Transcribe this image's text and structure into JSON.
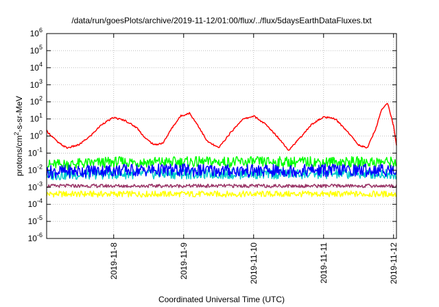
{
  "chart_data": {
    "type": "line",
    "title": "/data/run/goesPlots/archive/2019-11-12/01:00/flux/../flux/5daysEarthDataFluxes.txt",
    "xlabel": "Coordinated Universal Time (UTC)",
    "ylabel_parts": {
      "base": "protons/cm",
      "sup": "2",
      "rest": "-s-sr-MeV"
    },
    "yscale": "log",
    "ylim": [
      1e-06,
      1000000.0
    ],
    "xlim": [
      "2019-11-07 01:00",
      "2019-11-12 01:00"
    ],
    "grid": true,
    "x_ticks": [
      {
        "date": "2019-11-08",
        "label": "2019-11-8"
      },
      {
        "date": "2019-11-09",
        "label": "2019-11-9"
      },
      {
        "date": "2019-11-10",
        "label": "2019-11-10"
      },
      {
        "date": "2019-11-11",
        "label": "2019-11-11"
      },
      {
        "date": "2019-11-12",
        "label": "2019-11-12"
      }
    ],
    "y_ticks": [
      {
        "value": 1e-06,
        "base": "10",
        "exp": "-6"
      },
      {
        "value": 1e-05,
        "base": "10",
        "exp": "-5"
      },
      {
        "value": 0.0001,
        "base": "10",
        "exp": "-4"
      },
      {
        "value": 0.001,
        "base": "10",
        "exp": "-3"
      },
      {
        "value": 0.01,
        "base": "10",
        "exp": "-2"
      },
      {
        "value": 0.1,
        "base": "10",
        "exp": "-1"
      },
      {
        "value": 1,
        "base": "10",
        "exp": "0"
      },
      {
        "value": 10,
        "base": "10",
        "exp": "1"
      },
      {
        "value": 100,
        "base": "10",
        "exp": "2"
      },
      {
        "value": 1000,
        "base": "10",
        "exp": "3"
      },
      {
        "value": 10000,
        "base": "10",
        "exp": "4"
      },
      {
        "value": 100000,
        "base": "10",
        "exp": "5"
      },
      {
        "value": 1000000,
        "base": "10",
        "exp": "6"
      }
    ],
    "series": [
      {
        "color": "#ffff00",
        "x": [
          "2019-11-07 01:00",
          "2019-11-08 01:00",
          "2019-11-09 01:00",
          "2019-11-10 01:00",
          "2019-11-11 01:00",
          "2019-11-12 01:00"
        ],
        "y": [
          0.0004,
          0.0004,
          0.0004,
          0.0004,
          0.0004,
          0.0004
        ]
      },
      {
        "color": "#00ff00",
        "x": [
          "2019-11-07 01:00",
          "2019-11-08 01:00",
          "2019-11-09 01:00",
          "2019-11-10 01:00",
          "2019-11-11 01:00",
          "2019-11-12 01:00"
        ],
        "y": [
          0.02,
          0.03,
          0.03,
          0.03,
          0.03,
          0.03
        ]
      },
      {
        "color": "#00cccc",
        "x": [
          "2019-11-07 01:00",
          "2019-11-08 01:00",
          "2019-11-09 01:00",
          "2019-11-10 01:00",
          "2019-11-11 01:00",
          "2019-11-12 01:00"
        ],
        "y": [
          0.005,
          0.006,
          0.006,
          0.006,
          0.006,
          0.006
        ]
      },
      {
        "color": "#0000ff",
        "x": [
          "2019-11-07 01:00",
          "2019-11-08 01:00",
          "2019-11-09 01:00",
          "2019-11-10 01:00",
          "2019-11-11 01:00",
          "2019-11-12 01:00"
        ],
        "y": [
          0.008,
          0.01,
          0.01,
          0.009,
          0.01,
          0.01
        ]
      },
      {
        "color": "#993366",
        "x": [
          "2019-11-07 01:00",
          "2019-11-08 01:00",
          "2019-11-09 01:00",
          "2019-11-10 01:00",
          "2019-11-11 01:00",
          "2019-11-12 01:00"
        ],
        "y": [
          0.0012,
          0.0012,
          0.0012,
          0.0012,
          0.0012,
          0.0012
        ]
      },
      {
        "color": "#ff0000",
        "x": [
          "2019-11-07 01:00",
          "2019-11-07 05:00",
          "2019-11-07 08:00",
          "2019-11-07 12:00",
          "2019-11-07 16:00",
          "2019-11-07 20:00",
          "2019-11-08 00:00",
          "2019-11-08 04:00",
          "2019-11-08 08:00",
          "2019-11-08 11:00",
          "2019-11-08 14:00",
          "2019-11-08 17:00",
          "2019-11-08 20:00",
          "2019-11-08 23:00",
          "2019-11-09 02:00",
          "2019-11-09 05:00",
          "2019-11-09 08:00",
          "2019-11-09 12:00",
          "2019-11-09 16:00",
          "2019-11-09 20:00",
          "2019-11-10 00:00",
          "2019-11-10 04:00",
          "2019-11-10 08:00",
          "2019-11-10 12:00",
          "2019-11-10 16:00",
          "2019-11-10 20:00",
          "2019-11-11 00:00",
          "2019-11-11 04:00",
          "2019-11-11 08:00",
          "2019-11-11 12:00",
          "2019-11-11 15:00",
          "2019-11-11 18:00",
          "2019-11-11 20:00",
          "2019-11-11 22:00",
          "2019-11-12 00:00",
          "2019-11-12 01:00"
        ],
        "y": [
          2,
          0.4,
          0.2,
          0.3,
          1,
          5,
          12,
          8,
          3,
          0.7,
          0.3,
          0.4,
          3,
          15,
          22,
          4,
          0.5,
          0.2,
          1.5,
          9,
          15,
          5,
          1,
          0.15,
          0.8,
          5,
          13,
          10,
          2,
          0.3,
          0.2,
          3,
          40,
          80,
          4,
          0.3
        ]
      }
    ]
  }
}
